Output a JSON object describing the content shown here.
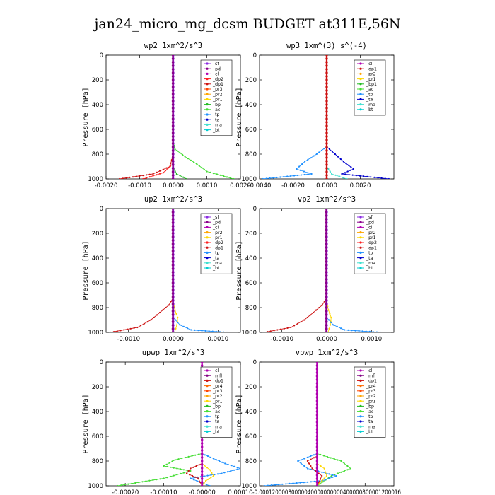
{
  "figure": {
    "title": "jan24_micro_mg_dcsm  BUDGET at311E,56N"
  },
  "colors": {
    "sf": "#8b2be2",
    "pd": "#8b008b",
    "cl": "#b000b0",
    "dp1": "#cc1111",
    "dp2": "#ff2020",
    "pr1": "#ffd700",
    "pr2": "#ffa500",
    "pr3": "#ff4500",
    "pr4": "#ff6a00",
    "bp": "#22bb22",
    "bp1": "#22bb22",
    "ac": "#44dd33",
    "tp": "#1e90ff",
    "ta": "#0000cd",
    "ma": "#40e0d0",
    "bt": "#00ced1",
    "mfl": "#800080"
  },
  "chart_data": [
    {
      "id": "wp2",
      "type": "line",
      "title": "wp2   1xm^2/s^3",
      "ylabel": "Pressure [hPa]",
      "xlim": [
        -0.002,
        0.002
      ],
      "ylim": [
        1000,
        0
      ],
      "xticks": [
        -0.002,
        -0.001,
        0,
        0.001,
        0.002
      ],
      "xtick_labels": [
        "-0.0020",
        "-0.0010",
        "0.0000",
        "0.0010",
        "0.0020"
      ],
      "yticks": [
        0,
        200,
        400,
        600,
        800,
        1000
      ],
      "ytick_labels": [
        "0",
        "200",
        "400",
        "600",
        "800",
        "1000"
      ],
      "legend": {
        "position": "top-right",
        "entries": [
          "_sf",
          "_pd",
          "_cl",
          "_dp2",
          "_dp1",
          "_pr3",
          "_pr2",
          "_pr1",
          "_bp",
          "_ac",
          "_tp",
          "_ta",
          "_ma",
          "_bt"
        ]
      },
      "series": [
        {
          "name": "_ac",
          "color_key": "ac",
          "p": [
            700,
            760,
            820,
            880,
            940,
            1000
          ],
          "x": [
            0,
            5e-05,
            0.00035,
            0.0007,
            0.001,
            0.0018
          ]
        },
        {
          "name": "_dp1",
          "color_key": "dp1",
          "p": [
            820,
            900,
            960,
            1000
          ],
          "x": [
            -2e-05,
            -0.0001,
            -0.0006,
            -0.0016
          ]
        },
        {
          "name": "_dp2",
          "color_key": "dp2",
          "p": [
            880,
            950,
            1000
          ],
          "x": [
            -2e-05,
            -0.0003,
            -0.0009
          ]
        },
        {
          "name": "_bp",
          "color_key": "bp",
          "p": [
            900,
            960,
            1000
          ],
          "x": [
            0,
            0.0001,
            0.0004
          ]
        },
        {
          "name": "_sf",
          "color_key": "sf",
          "p": [
            0,
            1000
          ],
          "x": [
            0,
            0
          ]
        },
        {
          "name": "_pd",
          "color_key": "pd",
          "p": [
            0,
            1000
          ],
          "x": [
            -1e-05,
            -1e-05
          ]
        }
      ]
    },
    {
      "id": "wp3",
      "type": "line",
      "title": "wp3   1xm^(3) s^(-4)",
      "ylabel": "Pressure [hPa]",
      "xlim": [
        -0.004,
        0.004
      ],
      "ylim": [
        1000,
        0
      ],
      "xticks": [
        -0.004,
        -0.002,
        0,
        0.002
      ],
      "xtick_labels": [
        "-0.0040",
        "-0.0020",
        "0.0000",
        "0.0020"
      ],
      "yticks": [
        0,
        200,
        400,
        600,
        800,
        1000
      ],
      "ytick_labels": [
        "0",
        "200",
        "400",
        "600",
        "800",
        "1000"
      ],
      "legend": {
        "position": "top-right",
        "entries": [
          "_cl",
          "_dp1",
          "_pr2",
          "_pr1",
          "_bp1",
          "_ac",
          "_tp",
          "_ta",
          "_ma",
          "_bt"
        ]
      },
      "series": [
        {
          "name": "_tp",
          "color_key": "tp",
          "p": [
            740,
            800,
            860,
            920,
            960,
            1000
          ],
          "x": [
            0,
            -0.0006,
            -0.0013,
            -0.0018,
            -0.0009,
            -0.0038
          ]
        },
        {
          "name": "_ta",
          "color_key": "ta",
          "p": [
            740,
            800,
            860,
            920,
            960,
            1000
          ],
          "x": [
            0,
            0.0005,
            0.001,
            0.0016,
            0.0009,
            0.0037
          ]
        },
        {
          "name": "_ma",
          "color_key": "ma",
          "p": [
            900,
            960,
            1000
          ],
          "x": [
            0,
            0.0003,
            0.0012
          ]
        },
        {
          "name": "_dp1",
          "color_key": "dp1",
          "p": [
            0,
            1000
          ],
          "x": [
            0,
            0
          ]
        }
      ]
    },
    {
      "id": "up2",
      "type": "line",
      "title": "up2   1xm^2/s^3",
      "ylabel": "Pressure [hPa]",
      "xlim": [
        -0.0015,
        0.0015
      ],
      "ylim": [
        1000,
        0
      ],
      "xticks": [
        -0.001,
        0,
        0.001
      ],
      "xtick_labels": [
        "-0.0010",
        "0.0000",
        "0.0010"
      ],
      "yticks": [
        0,
        200,
        400,
        600,
        800,
        1000
      ],
      "ytick_labels": [
        "0",
        "200",
        "400",
        "600",
        "800",
        "1000"
      ],
      "legend": {
        "position": "top-right",
        "entries": [
          "_sf",
          "_pd",
          "_cl",
          "_pr2",
          "_pr1",
          "_dp2",
          "_dp1",
          "_tp",
          "_ta",
          "_ma",
          "_bt"
        ]
      },
      "series": [
        {
          "name": "_dp1",
          "color_key": "dp1",
          "p": [
            720,
            780,
            840,
            900,
            960,
            1000
          ],
          "x": [
            0,
            -0.0001,
            -0.0003,
            -0.0005,
            -0.0008,
            -0.0014
          ]
        },
        {
          "name": "_pr1",
          "color_key": "pr1",
          "p": [
            760,
            820,
            880,
            940,
            1000
          ],
          "x": [
            0,
            4e-05,
            0.0001,
            8e-05,
            3e-05
          ]
        },
        {
          "name": "_tp",
          "color_key": "tp",
          "p": [
            880,
            940,
            980,
            1000
          ],
          "x": [
            0,
            0.00015,
            0.0004,
            0.0012
          ]
        },
        {
          "name": "_sf",
          "color_key": "sf",
          "p": [
            0,
            1000
          ],
          "x": [
            0,
            0
          ]
        },
        {
          "name": "_pd",
          "color_key": "pd",
          "p": [
            0,
            1000
          ],
          "x": [
            -1e-05,
            -1e-05
          ]
        }
      ]
    },
    {
      "id": "vp2",
      "type": "line",
      "title": "vp2   1xm^2/s^3",
      "ylabel": "Pressure [hPa]",
      "xlim": [
        -0.0015,
        0.0015
      ],
      "ylim": [
        1000,
        0
      ],
      "xticks": [
        -0.001,
        0,
        0.001
      ],
      "xtick_labels": [
        "-0.0010",
        "0.0000",
        "0.0010"
      ],
      "yticks": [
        0,
        200,
        400,
        600,
        800,
        1000
      ],
      "ytick_labels": [
        "0",
        "200",
        "400",
        "600",
        "800",
        "1000"
      ],
      "legend": {
        "position": "top-right",
        "entries": [
          "_sf",
          "_pd",
          "_cl",
          "_pr2",
          "_pr1",
          "_dp2",
          "_dp1",
          "_tp",
          "_ta",
          "_ma",
          "_bt"
        ]
      },
      "series": [
        {
          "name": "_dp1",
          "color_key": "dp1",
          "p": [
            720,
            780,
            840,
            900,
            960,
            1000
          ],
          "x": [
            0,
            -0.0001,
            -0.0003,
            -0.0005,
            -0.0008,
            -0.0014
          ]
        },
        {
          "name": "_pr1",
          "color_key": "pr1",
          "p": [
            760,
            820,
            880,
            940,
            1000
          ],
          "x": [
            0,
            4e-05,
            0.0001,
            8e-05,
            3e-05
          ]
        },
        {
          "name": "_tp",
          "color_key": "tp",
          "p": [
            880,
            940,
            980,
            1000
          ],
          "x": [
            0,
            0.00015,
            0.0004,
            0.0012
          ]
        },
        {
          "name": "_sf",
          "color_key": "sf",
          "p": [
            0,
            1000
          ],
          "x": [
            0,
            0
          ]
        },
        {
          "name": "_pd",
          "color_key": "pd",
          "p": [
            0,
            1000
          ],
          "x": [
            -1e-05,
            -1e-05
          ]
        }
      ]
    },
    {
      "id": "upwp",
      "type": "line",
      "title": "upwp   1xm^2/s^3",
      "ylabel": "Pressure [hPa]",
      "xlim": [
        -0.00025,
        0.0001
      ],
      "ylim": [
        1000,
        0
      ],
      "xticks": [
        -0.0002,
        -0.0001,
        0,
        0.0001
      ],
      "xtick_labels": [
        "-0.00020",
        "-0.00010",
        "-0.00000",
        "0.00010"
      ],
      "yticks": [
        0,
        200,
        400,
        600,
        800,
        1000
      ],
      "ytick_labels": [
        "0",
        "200",
        "400",
        "600",
        "800",
        "1000"
      ],
      "legend": {
        "position": "top-right",
        "entries": [
          "_cl",
          "_mfl",
          "_dp1",
          "_pr4",
          "_pr3",
          "_pr2",
          "_pr1",
          "_bp",
          "_ac",
          "_tp",
          "_ta",
          "_ma",
          "_bt"
        ]
      },
      "series": [
        {
          "name": "_ac",
          "color_key": "ac",
          "p": [
            740,
            790,
            840,
            880,
            940,
            1000
          ],
          "x": [
            0,
            -7e-05,
            -0.0001,
            -3e-05,
            -0.0001,
            -0.00022
          ]
        },
        {
          "name": "_tp",
          "color_key": "tp",
          "p": [
            740,
            780,
            820,
            860,
            900,
            940,
            1000
          ],
          "x": [
            0,
            3e-05,
            6e-05,
            0.0001,
            5e-05,
            -3e-05,
            2e-05
          ]
        },
        {
          "name": "_dp1",
          "color_key": "dp1",
          "p": [
            820,
            860,
            900,
            940,
            1000
          ],
          "x": [
            0,
            -3e-05,
            -4e-05,
            -1e-05,
            0
          ]
        },
        {
          "name": "_pr1",
          "color_key": "pr1",
          "p": [
            820,
            870,
            920,
            960,
            1000
          ],
          "x": [
            0,
            2e-05,
            3e-05,
            1e-05,
            0
          ]
        },
        {
          "name": "_cl",
          "color_key": "cl",
          "p": [
            0,
            1000
          ],
          "x": [
            0,
            0
          ]
        }
      ]
    },
    {
      "id": "vpwp",
      "type": "line",
      "title": "vpwp   1xm^2/s^3",
      "ylabel": "Pressure [hPa]",
      "xlim": [
        -0.00012,
        0.00016
      ],
      "ylim": [
        1000,
        0
      ],
      "xticks": [
        -0.0001,
        0,
        0.0001
      ],
      "xtick_labels": [
        "-0.00010",
        "0.00000",
        "0.00010"
      ],
      "xlabel_text": "-0.00012000080000040000000000400000800001200016",
      "yticks": [
        0,
        200,
        400,
        600,
        800,
        1000
      ],
      "ytick_labels": [
        "0",
        "200",
        "400",
        "600",
        "800",
        "1000"
      ],
      "legend": {
        "position": "top-right",
        "entries": [
          "_cl",
          "_mfl",
          "_dp1",
          "_pr4",
          "_pr3",
          "_pr2",
          "_pr1",
          "_bp",
          "_ac",
          "_tp",
          "_ta",
          "_ma",
          "_bt"
        ]
      },
      "series": [
        {
          "name": "_ac",
          "color_key": "ac",
          "p": [
            740,
            800,
            860,
            920,
            1000
          ],
          "x": [
            0,
            5e-05,
            7e-05,
            3e-05,
            0
          ]
        },
        {
          "name": "_tp",
          "color_key": "tp",
          "p": [
            740,
            800,
            860,
            920,
            960,
            1000
          ],
          "x": [
            0,
            -4e-05,
            -2e-05,
            4e-05,
            1e-05,
            -0.00011
          ]
        },
        {
          "name": "_dp1",
          "color_key": "dp1",
          "p": [
            760,
            800,
            860,
            920,
            1000
          ],
          "x": [
            0,
            -2e-05,
            -1e-05,
            1e-05,
            0
          ]
        },
        {
          "name": "_pr1",
          "color_key": "pr1",
          "p": [
            820,
            860,
            920,
            960,
            1000
          ],
          "x": [
            0,
            1.5e-05,
            2e-05,
            1e-05,
            0
          ]
        },
        {
          "name": "_cl",
          "color_key": "cl",
          "p": [
            0,
            1000
          ],
          "x": [
            0,
            0
          ]
        }
      ]
    }
  ]
}
